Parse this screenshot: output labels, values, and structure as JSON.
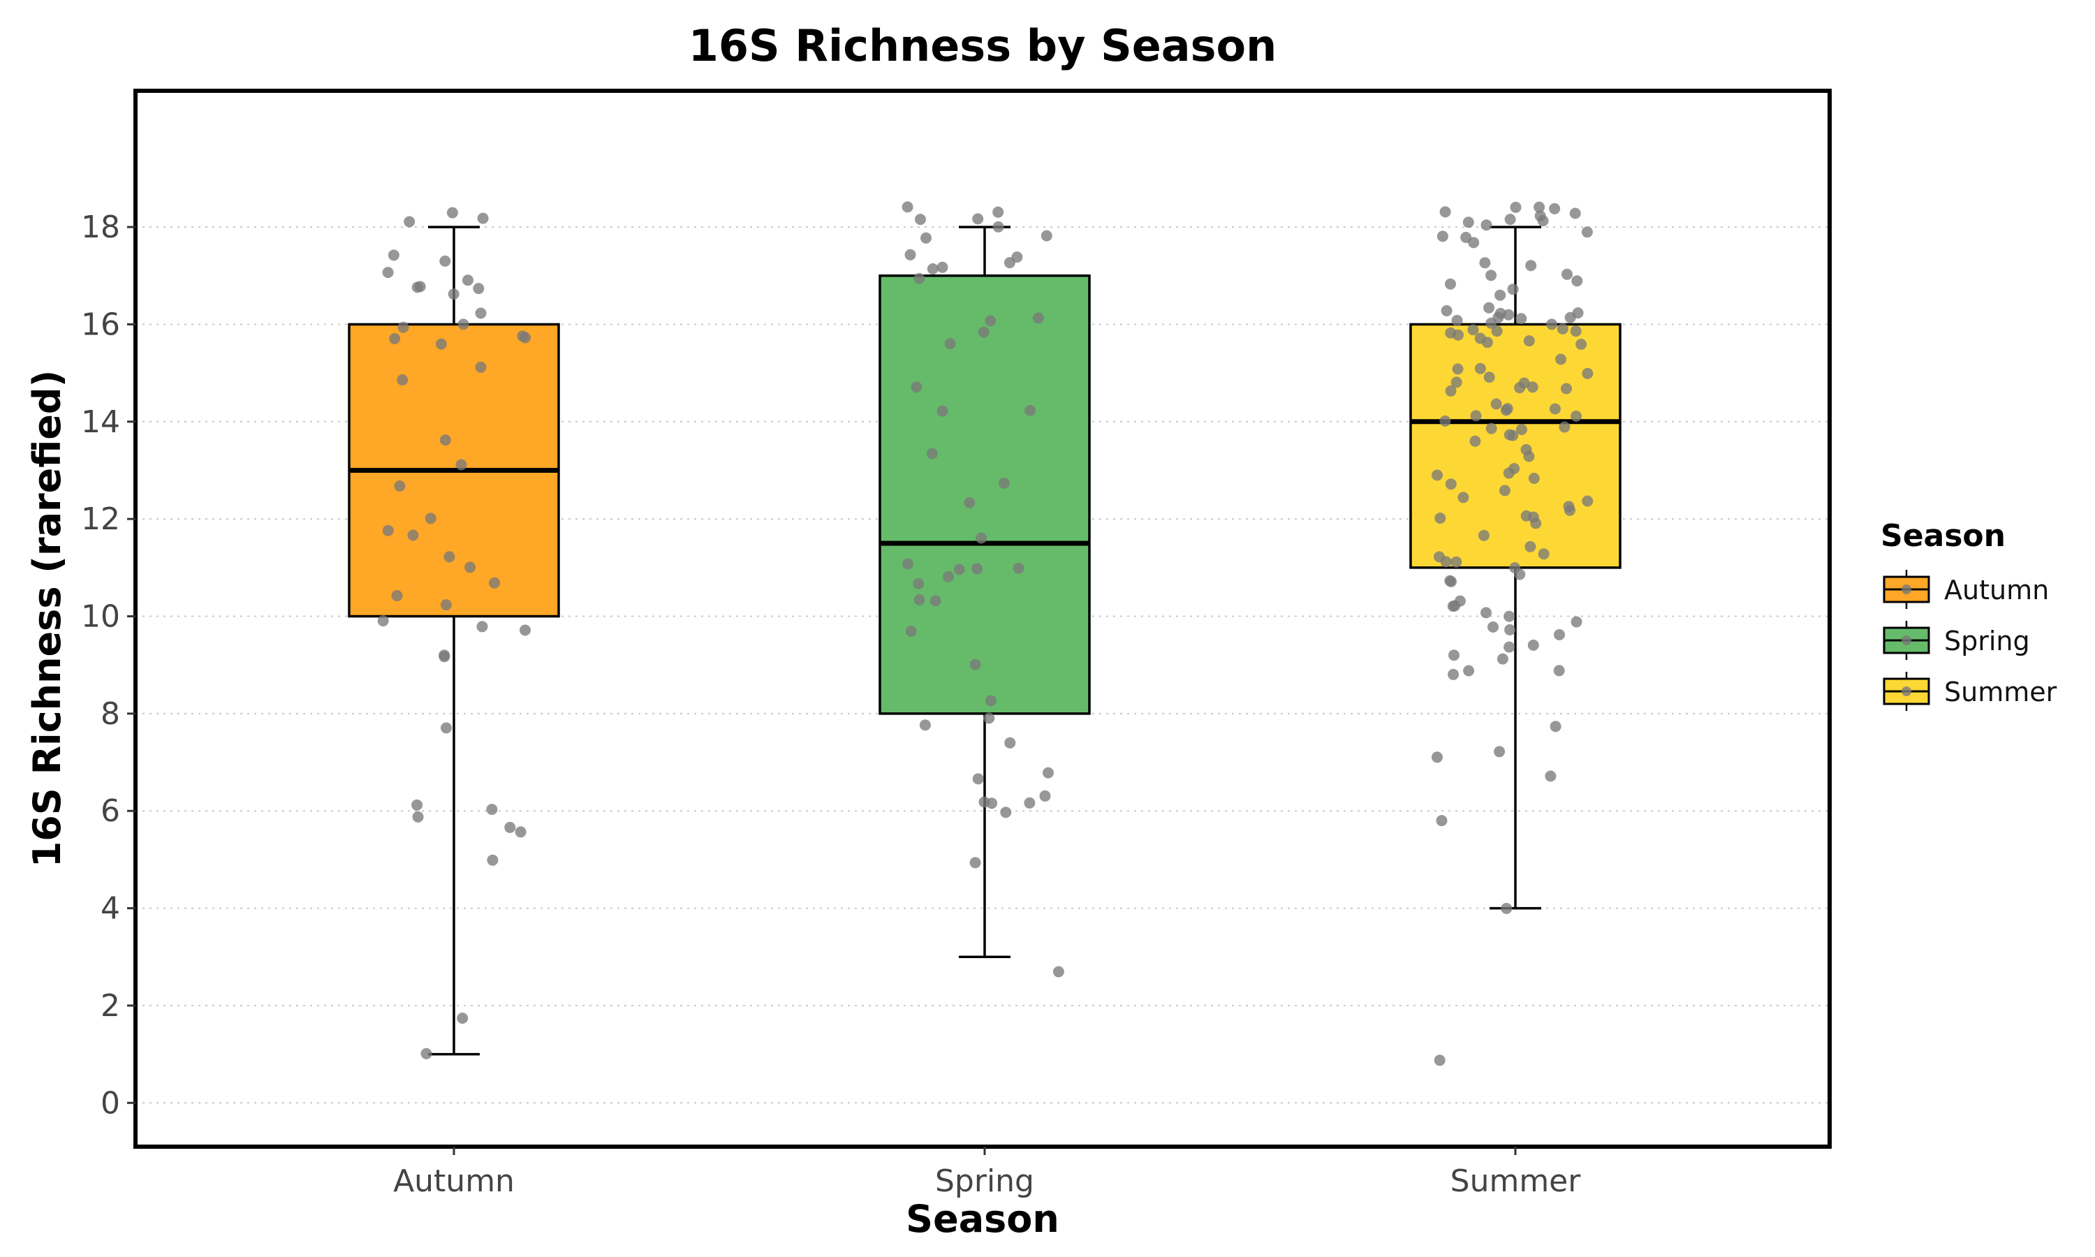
{
  "chart_data": {
    "type": "box",
    "title": "16S Richness by Season",
    "xlabel": "Season",
    "ylabel": "16S Richness (rarefied)",
    "ylim": [
      -0.9,
      20.8
    ],
    "yticks": [
      0,
      2,
      4,
      6,
      8,
      10,
      12,
      14,
      16,
      18
    ],
    "grid": "horizontal dotted",
    "legend": {
      "title": "Season",
      "placement": "right"
    },
    "categories": [
      "Autumn",
      "Spring",
      "Summer"
    ],
    "boxes": [
      {
        "name": "Autumn",
        "color": "#FFA726",
        "min": 1,
        "q1": 10,
        "median": 13,
        "q3": 16,
        "max": 18,
        "points": [
          18.3,
          17.4,
          17.3,
          17.1,
          16.9,
          16.8,
          16.7,
          16.6,
          16.2,
          16.0,
          15.9,
          15.8,
          15.7,
          15.7,
          15.6,
          15.1,
          14.9,
          13.6,
          13.1,
          12.7,
          12.0,
          11.8,
          11.7,
          11.2,
          11.0,
          10.7,
          10.4,
          10.2,
          9.9,
          9.8,
          9.7,
          9.2,
          9.2,
          7.7,
          6.1,
          6.0,
          5.9,
          5.7,
          5.6,
          5.0,
          1.7,
          1.0,
          18.1,
          18.2,
          16.8
        ]
      },
      {
        "name": "Spring",
        "color": "#66BB6A",
        "min": 3,
        "q1": 8,
        "median": 11.5,
        "q3": 17,
        "max": 18,
        "points": [
          18.4,
          18.3,
          18.2,
          18.2,
          18.0,
          17.8,
          17.8,
          17.4,
          17.4,
          17.3,
          17.2,
          17.1,
          16.9,
          16.1,
          16.1,
          15.8,
          15.6,
          14.7,
          14.2,
          14.2,
          13.3,
          12.7,
          12.3,
          11.6,
          11.1,
          11.0,
          11.0,
          11.0,
          10.8,
          10.7,
          10.3,
          10.3,
          9.7,
          9.0,
          8.3,
          7.9,
          7.8,
          7.4,
          6.8,
          6.7,
          6.3,
          6.2,
          6.2,
          6.2,
          6.0,
          4.9,
          2.7
        ]
      },
      {
        "name": "Summer",
        "color": "#FDD835",
        "min": 4,
        "q1": 11,
        "median": 14,
        "q3": 16,
        "max": 18,
        "points": [
          18.4,
          18.4,
          18.4,
          18.3,
          18.3,
          18.2,
          18.2,
          18.1,
          18.1,
          18.0,
          17.9,
          17.8,
          17.8,
          17.7,
          17.3,
          17.2,
          17.0,
          17.0,
          16.9,
          16.8,
          16.7,
          16.6,
          16.3,
          16.3,
          16.2,
          16.2,
          16.2,
          16.1,
          16.1,
          16.1,
          16.1,
          16.0,
          16.0,
          15.9,
          15.9,
          15.9,
          15.9,
          15.8,
          15.8,
          15.7,
          15.7,
          15.6,
          15.6,
          15.3,
          15.1,
          15.1,
          15.0,
          14.9,
          14.8,
          14.8,
          14.7,
          14.7,
          14.7,
          14.6,
          14.4,
          14.3,
          14.3,
          14.2,
          14.1,
          14.1,
          14.0,
          13.9,
          13.9,
          13.8,
          13.7,
          13.7,
          13.6,
          13.4,
          13.3,
          13.0,
          12.9,
          12.9,
          12.8,
          12.7,
          12.6,
          12.4,
          12.4,
          12.3,
          12.2,
          12.1,
          12.0,
          12.0,
          11.9,
          11.7,
          11.4,
          11.3,
          11.2,
          11.1,
          11.1,
          11.0,
          10.9,
          10.7,
          10.7,
          10.3,
          10.2,
          10.2,
          10.1,
          10.0,
          9.9,
          9.8,
          9.7,
          9.6,
          9.4,
          9.4,
          9.2,
          9.1,
          8.9,
          8.9,
          8.8,
          7.7,
          7.2,
          7.1,
          6.7,
          5.8,
          4.0,
          0.9
        ]
      }
    ]
  }
}
